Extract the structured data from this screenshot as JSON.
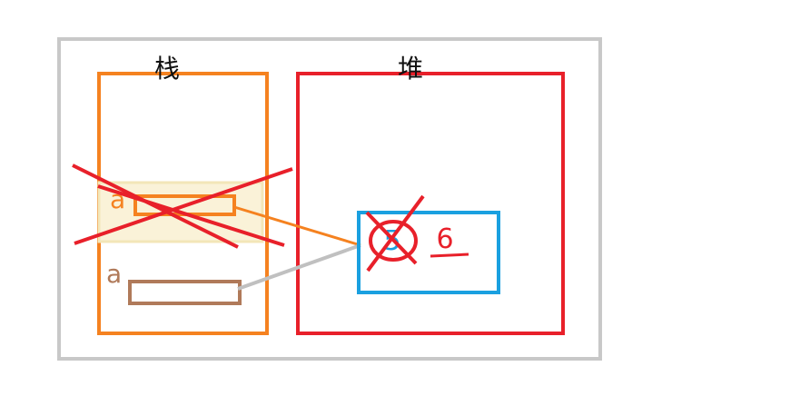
{
  "stack": {
    "title": "栈",
    "frame_var_label": "a",
    "local_var_label": "a"
  },
  "heap": {
    "title": "堆",
    "old_value": "5",
    "new_value": "6"
  },
  "colors": {
    "outer_border": "#c8c8c8",
    "stack": "#f58220",
    "heap": "#e8202a",
    "object": "#1aa0e0",
    "frame_fill": "#f3e6b8",
    "old_ref": "#f58220",
    "new_ref": "#b07a5a",
    "new_ref_line": "#c0c0c0",
    "cross": "#e8202a"
  }
}
